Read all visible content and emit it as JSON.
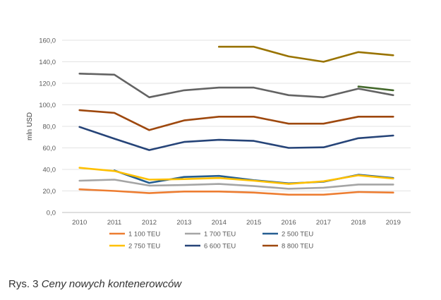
{
  "chart_data": {
    "type": "line",
    "title": "",
    "xlabel": "",
    "ylabel": "mln USD",
    "ylim": [
      0,
      160
    ],
    "yticks": [
      "0,0",
      "20,0",
      "40,0",
      "60,0",
      "80,0",
      "100,0",
      "120,0",
      "140,0",
      "160,0"
    ],
    "categories": [
      "2010",
      "2011",
      "2012",
      "2013",
      "2014",
      "2015",
      "2016",
      "2017",
      "2018",
      "2019"
    ],
    "grid": true,
    "legend_position": "bottom",
    "series": [
      {
        "name": "1 100 TEU",
        "color": "#ED7D31",
        "values": [
          21.5,
          20,
          18,
          19.5,
          19.5,
          18.5,
          16.5,
          16.5,
          19,
          18.5
        ]
      },
      {
        "name": "1 700 TEU",
        "color": "#A5A5A5",
        "values": [
          29.5,
          30.5,
          25,
          25.5,
          26.5,
          24.5,
          22,
          23,
          26,
          26
        ]
      },
      {
        "name": "2 500 TEU",
        "color": "#255E91",
        "values": [
          null,
          39,
          27.5,
          33,
          34,
          30,
          27,
          28.5,
          35,
          32
        ]
      },
      {
        "name": "2 750 TEU",
        "color": "#FFC000",
        "values": [
          41.5,
          38.5,
          30.5,
          31,
          32,
          29.5,
          26.5,
          29,
          34.5,
          31.5
        ]
      },
      {
        "name": "6 600 TEU",
        "color": "#264478",
        "values": [
          79.5,
          68.5,
          58,
          65.5,
          67.5,
          66.5,
          60,
          60.5,
          69,
          71.5
        ]
      },
      {
        "name": "8 800 TEU",
        "color": "#9E480E",
        "values": [
          95,
          92.5,
          76.5,
          85.5,
          89,
          89,
          82.5,
          82.5,
          89,
          89
        ]
      },
      {
        "name": "",
        "color": "#636363",
        "values": [
          129,
          128,
          107,
          113.5,
          116,
          116,
          109,
          107,
          115,
          109
        ]
      },
      {
        "name": "",
        "color": "#997300",
        "values": [
          null,
          null,
          null,
          null,
          154,
          154,
          145,
          140,
          149,
          146
        ]
      },
      {
        "name": "",
        "color": "#43682B",
        "values": [
          null,
          null,
          null,
          null,
          null,
          null,
          null,
          null,
          117,
          113.5
        ]
      }
    ]
  },
  "caption": {
    "prefix": "Rys. 3 ",
    "title": "Ceny nowych kontenerowców"
  }
}
